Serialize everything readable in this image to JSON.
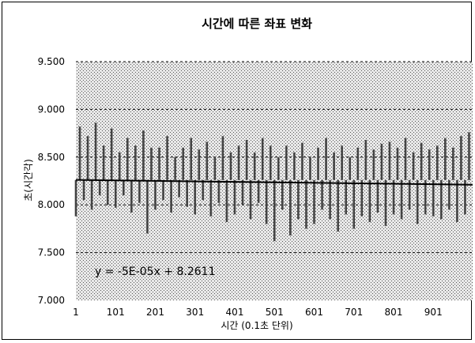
{
  "chart_data": {
    "type": "bar",
    "title": "시간에 따른 좌표 변화",
    "xlabel": "시간 (0.1초 단위)",
    "ylabel": "초(시간각)",
    "ylim": [
      7.0,
      9.5
    ],
    "xlim": [
      1,
      1000
    ],
    "x_tick_labels": [
      "1",
      "101",
      "201",
      "301",
      "401",
      "501",
      "601",
      "701",
      "801",
      "901"
    ],
    "y_tick_labels": [
      "7.000",
      "7.500",
      "8.000",
      "8.500",
      "9.000",
      "9.500"
    ],
    "y_ticks": [
      7.0,
      7.5,
      8.0,
      8.5,
      9.0,
      9.5
    ],
    "grid": "horizontal dashed",
    "plot_background": "stippled grey",
    "baseline": 8.26,
    "series": [
      {
        "x": [
          1,
          11,
          21,
          31,
          41,
          51,
          61,
          71,
          81,
          91,
          101,
          111,
          121,
          131,
          141,
          151,
          161,
          171,
          181,
          191,
          201,
          211,
          221,
          231,
          241,
          251,
          261,
          271,
          281,
          291,
          301,
          311,
          321,
          331,
          341,
          351,
          361,
          371,
          381,
          391,
          401,
          411,
          421,
          431,
          441,
          451,
          461,
          471,
          481,
          491,
          501,
          511,
          521,
          531,
          541,
          551,
          561,
          571,
          581,
          591,
          601,
          611,
          621,
          631,
          641,
          651,
          661,
          671,
          681,
          691,
          701,
          711,
          721,
          731,
          741,
          751,
          761,
          771,
          781,
          791,
          801,
          811,
          821,
          831,
          841,
          851,
          861,
          871,
          881,
          891,
          901,
          911,
          921,
          931,
          941,
          951,
          961,
          971,
          981,
          991
        ],
        "values": [
          7.88,
          8.82,
          8.05,
          8.72,
          7.95,
          8.86,
          8.1,
          8.62,
          8.0,
          8.8,
          7.97,
          8.55,
          8.1,
          8.7,
          7.92,
          8.62,
          8.02,
          8.78,
          7.7,
          8.6,
          7.95,
          8.6,
          8.05,
          8.72,
          7.92,
          8.5,
          8.08,
          8.6,
          7.98,
          8.7,
          7.9,
          8.58,
          8.05,
          8.66,
          7.88,
          8.5,
          8.02,
          8.72,
          7.82,
          8.55,
          7.9,
          8.62,
          8.0,
          8.68,
          7.85,
          8.55,
          8.02,
          8.7,
          7.8,
          8.62,
          7.62,
          8.5,
          7.95,
          8.62,
          7.68,
          8.55,
          7.85,
          8.65,
          7.75,
          8.5,
          7.8,
          8.6,
          7.95,
          8.7,
          7.85,
          8.55,
          7.72,
          8.62,
          7.9,
          8.5,
          7.75,
          8.6,
          7.88,
          8.68,
          7.82,
          8.58,
          7.92,
          8.64,
          7.78,
          8.66,
          7.9,
          8.6,
          7.85,
          8.7,
          7.95,
          8.55,
          7.8,
          8.65,
          7.9,
          8.58,
          7.88,
          8.62,
          7.85,
          8.7,
          7.95,
          8.6,
          7.82,
          8.72,
          7.9,
          8.76
        ]
      }
    ],
    "trendline": {
      "slope": -5e-05,
      "intercept": 8.2611,
      "label": "y = -5E-05x + 8.2611"
    }
  },
  "colors": {
    "bar": "#444444",
    "trend": "#000000",
    "grid": "#000000",
    "plot_bg": "#d6d6d6"
  }
}
